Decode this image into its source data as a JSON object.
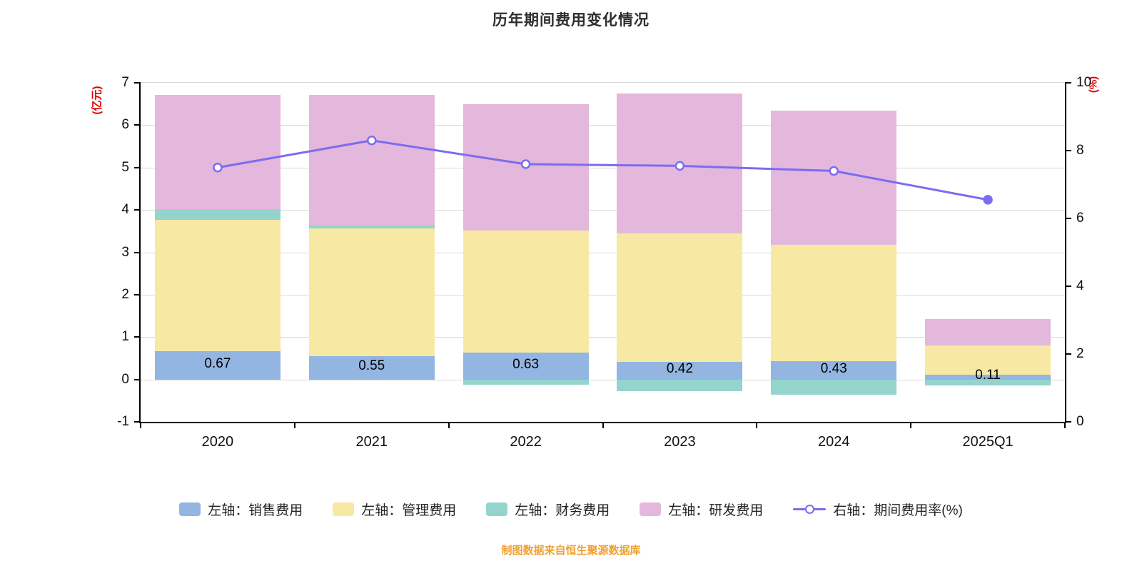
{
  "title": "历年期间费用变化情况",
  "source_note": "制图数据来自恒生聚源数据库",
  "left_axis": {
    "unit": "(亿元)",
    "min": -1,
    "max": 7,
    "ticks": [
      -1,
      0,
      1,
      2,
      3,
      4,
      5,
      6,
      7
    ]
  },
  "right_axis": {
    "unit": "(%)",
    "min": 0,
    "max": 10,
    "ticks": [
      0,
      2,
      4,
      6,
      8,
      10
    ]
  },
  "colors": {
    "sales_bar": "#93b5e1",
    "management_bar": "#f7e8a4",
    "finance_bar": "#93d5cd",
    "rd_bar": "#e4b8dc",
    "rate_line": "#7b6cf0",
    "axis_unit_text": "#e00000",
    "source_text": "#f0a030"
  },
  "chart_data": {
    "type": "bar",
    "title": "历年期间费用变化情况",
    "categories": [
      "2020",
      "2021",
      "2022",
      "2023",
      "2024",
      "2025Q1"
    ],
    "series": [
      {
        "name": "左轴：销售费用",
        "type": "bar",
        "axis": "left",
        "color": "#93b5e1",
        "values": [
          0.67,
          0.55,
          0.63,
          0.42,
          0.43,
          0.11
        ],
        "show_labels": true
      },
      {
        "name": "左轴：管理费用",
        "type": "bar",
        "axis": "left",
        "color": "#f7e8a4",
        "values": [
          3.1,
          3.02,
          2.88,
          3.03,
          2.74,
          0.69
        ]
      },
      {
        "name": "左轴：财务费用",
        "type": "bar",
        "axis": "left",
        "color": "#93d5cd",
        "values": [
          0.25,
          0.07,
          -0.12,
          -0.28,
          -0.36,
          -0.14
        ]
      },
      {
        "name": "左轴：研发费用",
        "type": "bar",
        "axis": "left",
        "color": "#e4b8dc",
        "values": [
          2.7,
          3.08,
          2.99,
          3.3,
          3.18,
          0.62
        ]
      },
      {
        "name": "右轴：期间费用率(%)",
        "type": "line",
        "axis": "right",
        "color": "#7b6cf0",
        "values": [
          7.5,
          8.3,
          7.6,
          7.55,
          7.4,
          6.55
        ]
      }
    ],
    "bar_value_labels": [
      "0.67",
      "0.55",
      "0.63",
      "0.42",
      "0.43",
      "0.11"
    ],
    "left_ylim": [
      -1,
      7
    ],
    "right_ylim": [
      0,
      10
    ],
    "grid": true,
    "legend_position": "bottom",
    "stacked": true
  }
}
